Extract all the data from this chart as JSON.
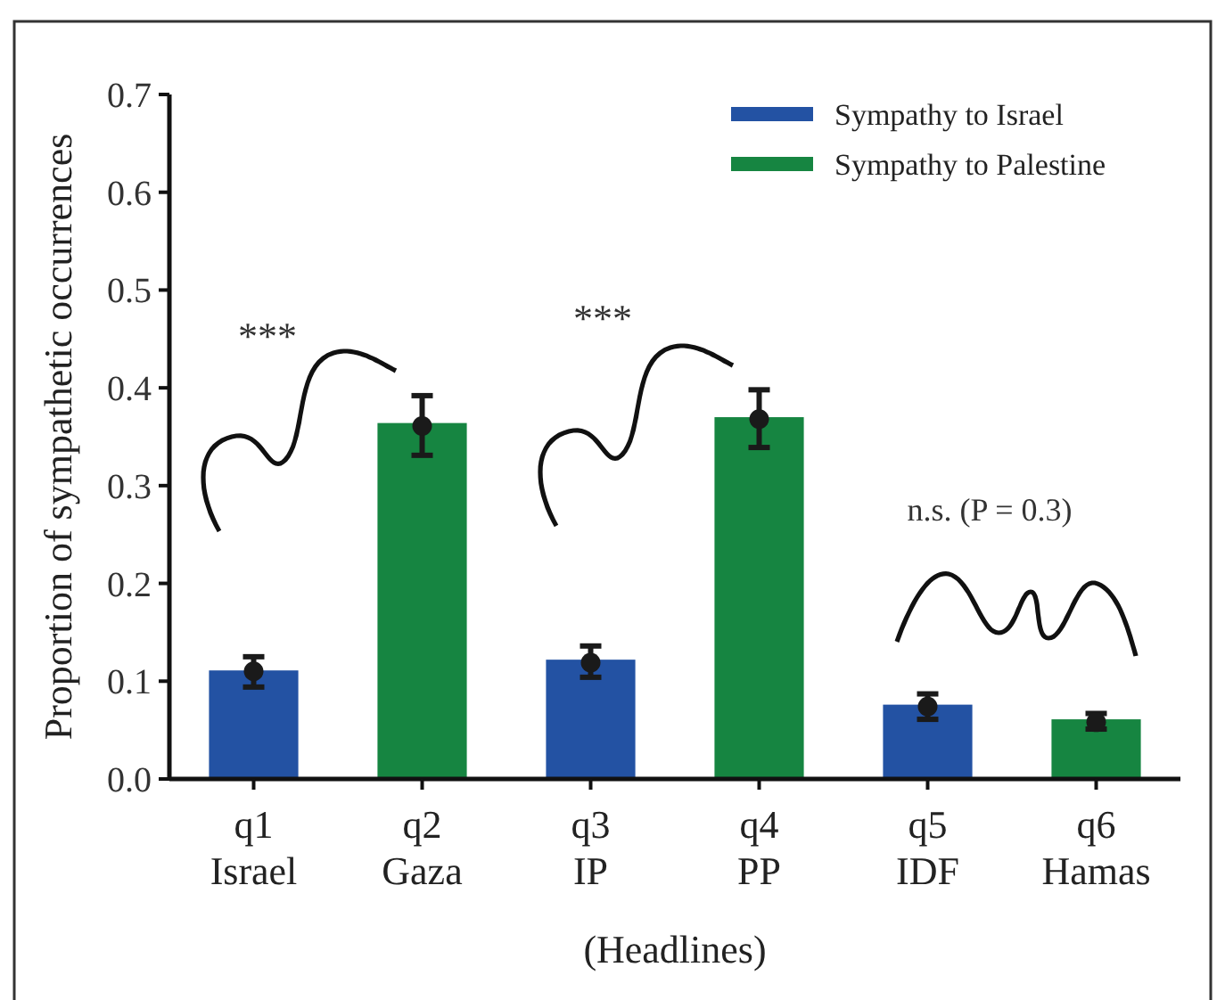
{
  "chart_data": {
    "type": "bar",
    "ylabel": "Proportion of sympathetic occurrences",
    "xlabel": "(Headlines)",
    "categories": [
      "q1\nIsrael",
      "q2\nGaza",
      "q3\nIP",
      "q4\nPP",
      "q5\nIDF",
      "q6\nHamas"
    ],
    "series": [
      {
        "name": "Sympathy to Israel",
        "color": "#2352a3",
        "values": [
          0.111,
          null,
          0.122,
          null,
          0.076,
          null
        ]
      },
      {
        "name": "Sympathy to Palestine",
        "color": "#168541",
        "values": [
          null,
          0.364,
          null,
          0.37,
          null,
          0.061
        ]
      },
      {
        "type": "scatter",
        "color": "#1a1a1a",
        "x": [
          "q1\nIsrael",
          "q2\nGaza",
          "q3\nIP",
          "q4\nPP",
          "q5\nIDF",
          "q6\nHamas"
        ],
        "values": [
          0.11,
          0.361,
          0.119,
          0.368,
          0.074,
          0.058
        ],
        "errors": [
          [
            0.094,
            0.125
          ],
          [
            0.331,
            0.392
          ],
          [
            0.104,
            0.136
          ],
          [
            0.339,
            0.398
          ],
          [
            0.061,
            0.087
          ],
          [
            0.051,
            0.067
          ]
        ],
        "marker": "circle"
      }
    ],
    "ylim": [
      0,
      0.7
    ],
    "yticks": [
      {
        "value": 0,
        "label": "0.0"
      },
      0.1,
      0.2,
      0.3,
      0.4,
      0.5,
      0.6,
      0.7
    ],
    "annotations": [
      "***",
      "***",
      "n.s. (P = 0.3)"
    ],
    "legend": "top right",
    "grid": false
  }
}
